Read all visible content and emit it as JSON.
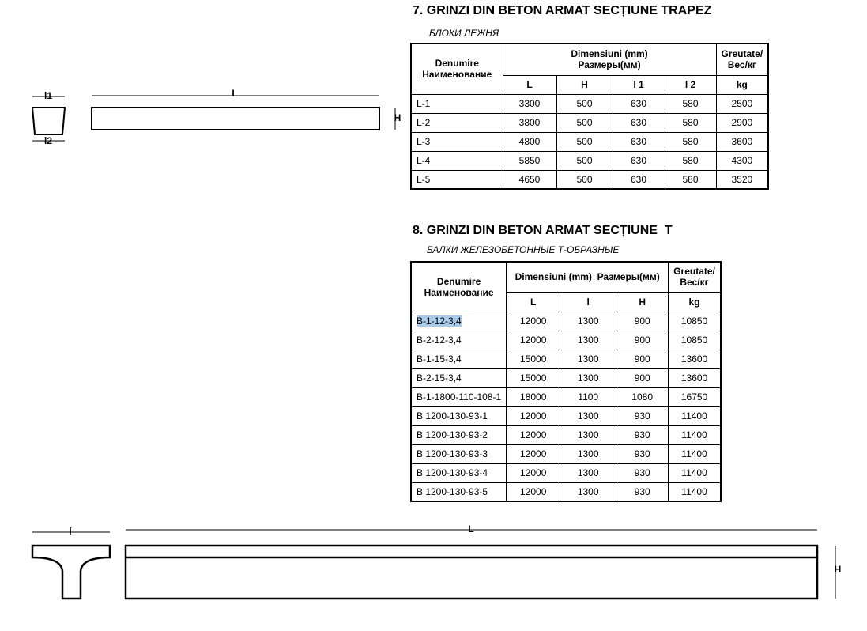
{
  "section_7": {
    "title": "7. GRINZI DIN BETON ARMAT SECȚIUNE TRAPEZ",
    "subtitle": "БЛОКИ ЛЕЖНЯ",
    "table": {
      "header": {
        "name": [
          "Denumire",
          "Наименование"
        ],
        "dimensions": [
          "Dimensiuni (mm)",
          "Размеры(мм)"
        ],
        "weight": [
          "Greutate/",
          "Вес/кг"
        ],
        "columns": [
          "L",
          "H",
          "l 1",
          "l 2"
        ],
        "weight_unit": "kg"
      },
      "rows": [
        [
          "L-1",
          3300,
          500,
          630,
          580,
          2500
        ],
        [
          "L-2",
          3800,
          500,
          630,
          580,
          2900
        ],
        [
          "L-3",
          4800,
          500,
          630,
          580,
          3600
        ],
        [
          "L-4",
          5850,
          500,
          630,
          580,
          4300
        ],
        [
          "L-5",
          4650,
          500,
          630,
          580,
          3520
        ]
      ]
    }
  },
  "diagram_1": {
    "labels": {
      "top_width": "l1",
      "bottom_width": "l2",
      "length": "L",
      "height": "H"
    }
  },
  "section_8": {
    "title": "8. GRINZI DIN BETON ARMAT SECȚIUNE  T",
    "subtitle": "БАЛКИ ЖЕЛЕЗОБЕТОННЫЕ Т-ОБРАЗНЫЕ",
    "table": {
      "header": {
        "name": [
          "Denumire",
          "Наименование"
        ],
        "dimensions": [
          "Dimensiuni (mm)  Размеры(мм)"
        ],
        "weight": [
          "Greutate/",
          "Вес/кг"
        ],
        "columns": [
          "L",
          "l",
          "H"
        ],
        "weight_unit": "kg"
      },
      "rows": [
        [
          "B-1-12-3,4",
          12000,
          1300,
          900,
          10850
        ],
        [
          "B-2-12-3,4",
          12000,
          1300,
          900,
          10850
        ],
        [
          "B-1-15-3,4",
          15000,
          1300,
          900,
          13600
        ],
        [
          "B-2-15-3,4",
          15000,
          1300,
          900,
          13600
        ],
        [
          "B-1-1800-110-108-1",
          18000,
          1100,
          1080,
          16750
        ],
        [
          "B 1200-130-93-1",
          12000,
          1300,
          930,
          11400
        ],
        [
          "B 1200-130-93-2",
          12000,
          1300,
          930,
          11400
        ],
        [
          "B 1200-130-93-3",
          12000,
          1300,
          930,
          11400
        ],
        [
          "B 1200-130-93-4",
          12000,
          1300,
          930,
          11400
        ],
        [
          "B 1200-130-93-5",
          12000,
          1300,
          930,
          11400
        ]
      ]
    }
  },
  "diagram_2": {
    "labels": {
      "width": "l",
      "length": "L",
      "height": "H"
    }
  }
}
